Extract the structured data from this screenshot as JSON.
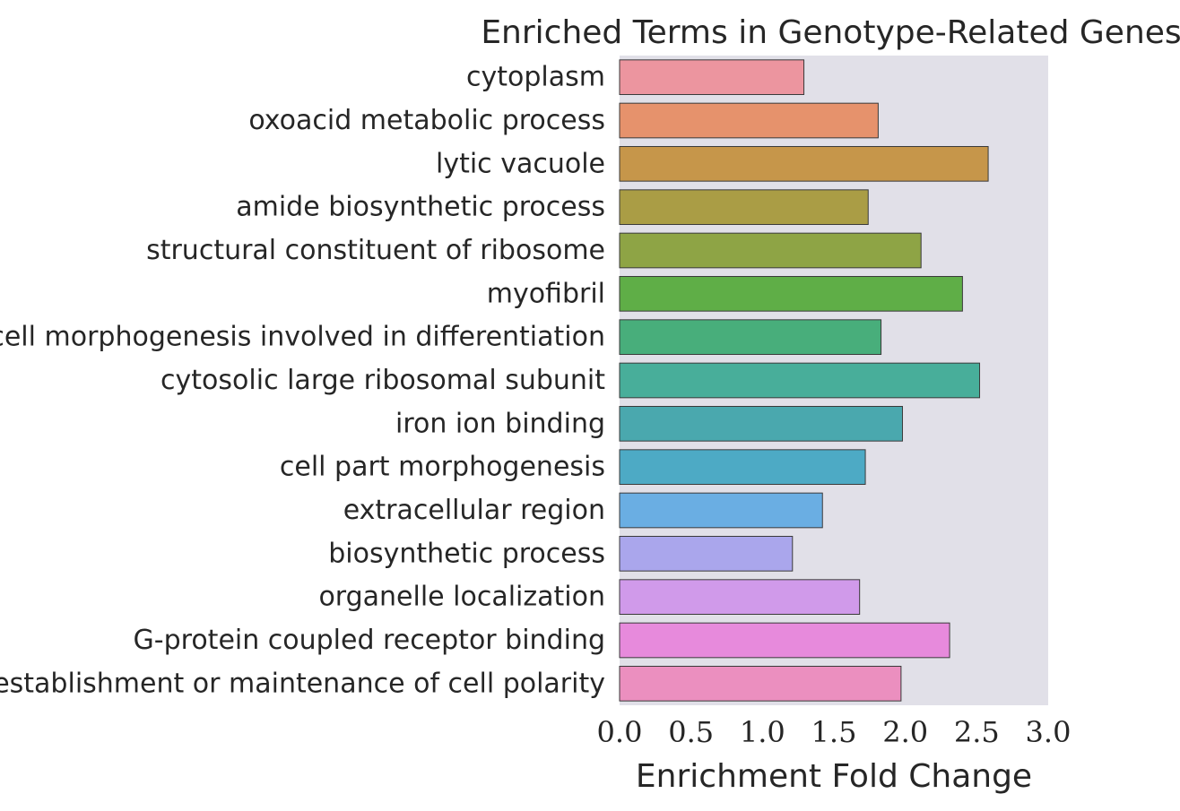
{
  "chart_data": {
    "type": "bar",
    "orientation": "horizontal",
    "title": "Enriched Terms in Genotype-Related Genes",
    "xlabel": "Enrichment Fold Change",
    "ylabel": "",
    "xlim": [
      0.0,
      3.0
    ],
    "xticks": [
      "0.0",
      "0.5",
      "1.0",
      "1.5",
      "2.0",
      "2.5",
      "3.0"
    ],
    "grid": false,
    "background": "#e1e0e8",
    "categories": [
      "cytoplasm",
      "oxoacid metabolic process",
      "lytic vacuole",
      "amide biosynthetic process",
      "structural constituent of ribosome",
      "myofibril",
      "cell morphogenesis involved in differentiation",
      "cytosolic large ribosomal subunit",
      "iron ion binding",
      "cell part morphogenesis",
      "extracellular region",
      "biosynthetic process",
      "organelle localization",
      "G-protein coupled receptor binding",
      "establishment or maintenance of cell polarity"
    ],
    "values": [
      1.29,
      1.81,
      2.58,
      1.74,
      2.11,
      2.4,
      1.83,
      2.52,
      1.98,
      1.72,
      1.42,
      1.21,
      1.68,
      2.31,
      1.97
    ],
    "colors": [
      "#ec959f",
      "#e6926c",
      "#c6964a",
      "#aa9d45",
      "#8ea445",
      "#5fae47",
      "#48ae7b",
      "#48ae9a",
      "#4aa8ae",
      "#4daac5",
      "#6aaee3",
      "#aaa6ec",
      "#d09aea",
      "#e78adc",
      "#eb8fbf"
    ]
  }
}
